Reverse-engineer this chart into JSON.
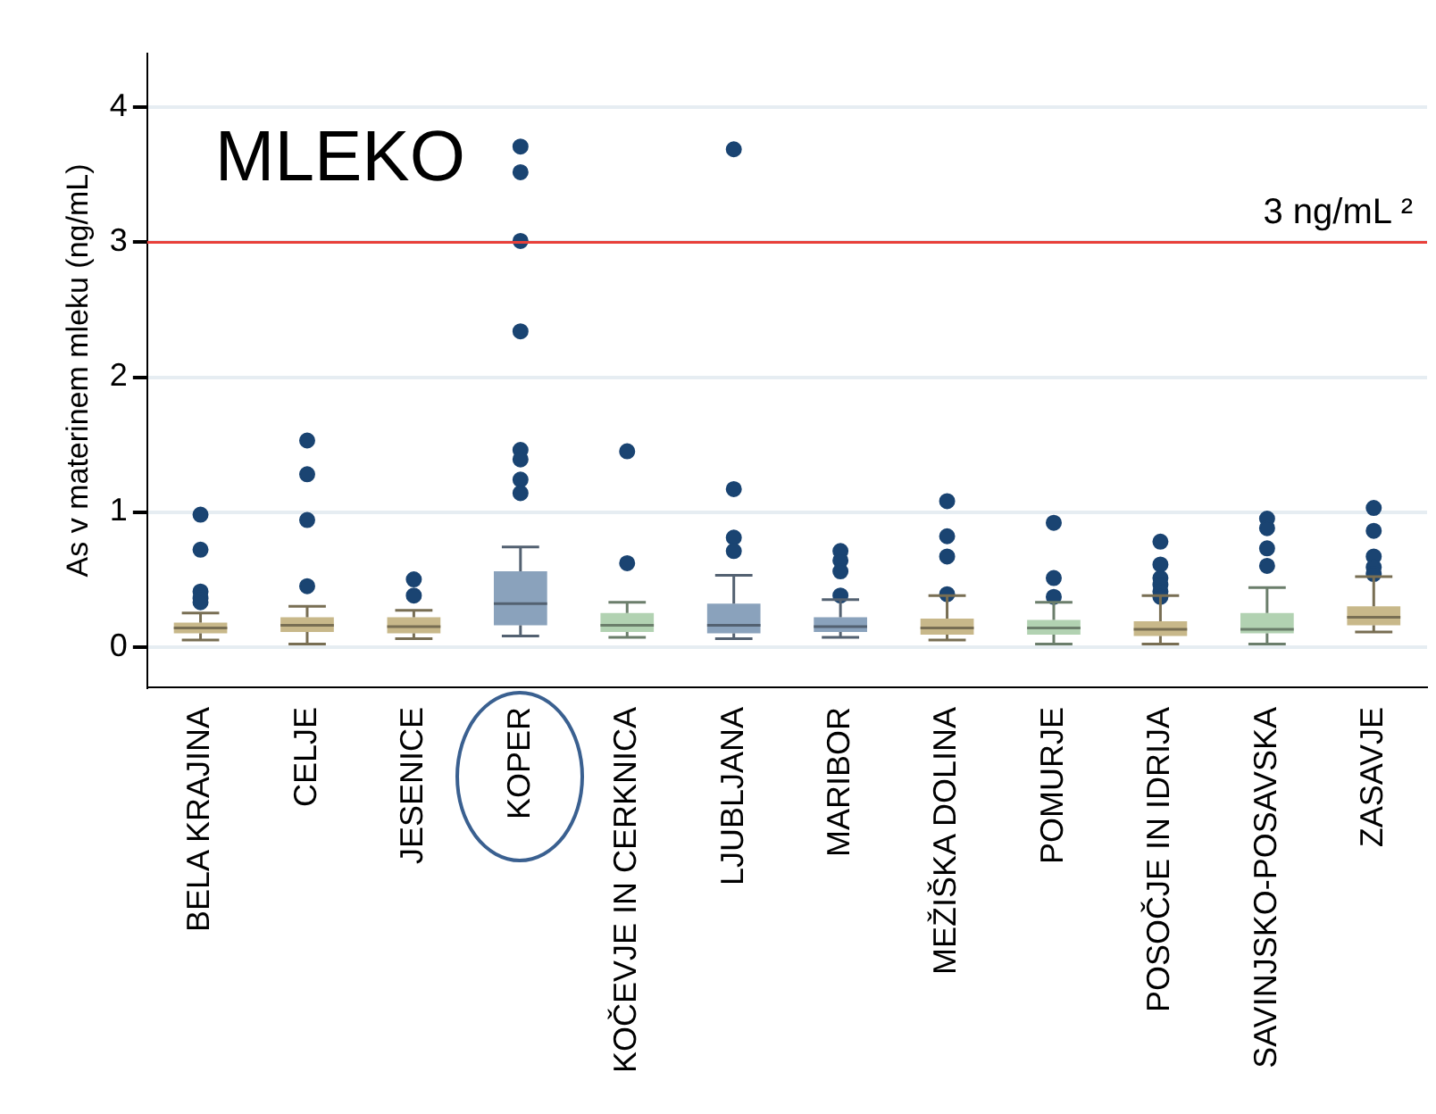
{
  "chart_data": {
    "type": "box",
    "title": "MLEKO",
    "ylabel": "As v materinem mleku (ng/mL)",
    "categories": [
      "BELA KRAJINA",
      "CELJE",
      "JESENICE",
      "KOPER",
      "KOČEVJE IN CERKNICA",
      "LJUBLJANA",
      "MARIBOR",
      "MEŽIŠKA DOLINA",
      "POMURJE",
      "POSOČJE IN IDRIJA",
      "SAVINJSKO-POSAVSKA",
      "ZASAVJE"
    ],
    "colors": [
      "#c8b88a",
      "#c8b88a",
      "#c8b88a",
      "#8aa2bc",
      "#b2d2b2",
      "#8aa2bc",
      "#8aa2bc",
      "#c8b88a",
      "#b2d2b2",
      "#c8b88a",
      "#b2d2b2",
      "#c8b88a"
    ],
    "boxes": [
      {
        "low": 0.05,
        "q1": 0.1,
        "median": 0.14,
        "q3": 0.18,
        "high": 0.25,
        "outliers": [
          0.98,
          0.72,
          0.41,
          0.36,
          0.33
        ]
      },
      {
        "low": 0.02,
        "q1": 0.11,
        "median": 0.16,
        "q3": 0.22,
        "high": 0.3,
        "outliers": [
          1.53,
          1.28,
          0.94,
          0.45
        ]
      },
      {
        "low": 0.06,
        "q1": 0.1,
        "median": 0.15,
        "q3": 0.22,
        "high": 0.27,
        "outliers": [
          0.5,
          0.38
        ]
      },
      {
        "low": 0.08,
        "q1": 0.16,
        "median": 0.32,
        "q3": 0.56,
        "high": 0.74,
        "outliers": [
          3.71,
          3.52,
          3.01,
          2.34,
          1.46,
          1.39,
          1.24,
          1.14
        ]
      },
      {
        "low": 0.07,
        "q1": 0.11,
        "median": 0.16,
        "q3": 0.25,
        "high": 0.33,
        "outliers": [
          1.45,
          0.62
        ]
      },
      {
        "low": 0.06,
        "q1": 0.1,
        "median": 0.16,
        "q3": 0.32,
        "high": 0.53,
        "outliers": [
          3.69,
          1.17,
          0.81,
          0.71
        ]
      },
      {
        "low": 0.07,
        "q1": 0.11,
        "median": 0.15,
        "q3": 0.22,
        "high": 0.35,
        "outliers": [
          0.71,
          0.64,
          0.56,
          0.38
        ]
      },
      {
        "low": 0.05,
        "q1": 0.09,
        "median": 0.14,
        "q3": 0.21,
        "high": 0.38,
        "outliers": [
          1.08,
          0.82,
          0.67,
          0.39
        ]
      },
      {
        "low": 0.02,
        "q1": 0.09,
        "median": 0.14,
        "q3": 0.2,
        "high": 0.33,
        "outliers": [
          0.92,
          0.51,
          0.37
        ]
      },
      {
        "low": 0.02,
        "q1": 0.08,
        "median": 0.13,
        "q3": 0.19,
        "high": 0.38,
        "outliers": [
          0.78,
          0.61,
          0.51,
          0.46,
          0.41,
          0.37
        ]
      },
      {
        "low": 0.02,
        "q1": 0.1,
        "median": 0.13,
        "q3": 0.25,
        "high": 0.44,
        "outliers": [
          0.95,
          0.88,
          0.73,
          0.6
        ]
      },
      {
        "low": 0.11,
        "q1": 0.16,
        "median": 0.22,
        "q3": 0.3,
        "high": 0.52,
        "outliers": [
          1.03,
          0.86,
          0.67,
          0.59,
          0.54
        ]
      }
    ],
    "ylim": [
      -0.3,
      4.4
    ],
    "yticks": [
      0,
      1,
      2,
      3,
      4
    ],
    "grid": "y",
    "ref_lines": [
      {
        "axis": "y",
        "value": 3,
        "label": "3 ng/mL ²",
        "color": "#e8403a"
      }
    ]
  }
}
